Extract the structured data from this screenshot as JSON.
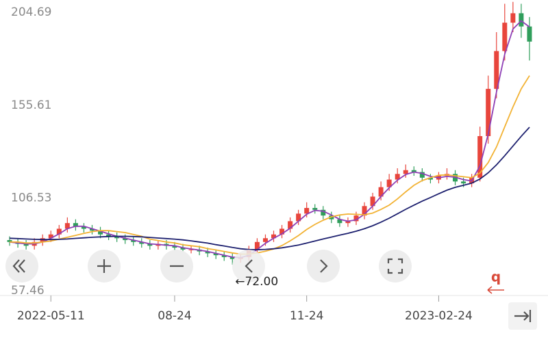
{
  "chart_data": {
    "type": "candlestick",
    "up_color": "#e8453c",
    "down_color": "#2f9e5b",
    "xlim": [
      -0.5,
      64
    ],
    "xticks": [
      {
        "value": 5,
        "label": "2022-05-11"
      },
      {
        "value": 20,
        "label": "08-24"
      },
      {
        "value": 36,
        "label": "11-24"
      },
      {
        "value": 52,
        "label": "2023-02-24"
      }
    ],
    "ylim": [
      55.7,
      212
    ],
    "yticks": [
      204.69,
      155.61,
      106.53,
      57.46
    ],
    "annotation": "←72.00",
    "annotation_at": 27,
    "signal_label": "q",
    "open": [
      85,
      84,
      83,
      82,
      84,
      86,
      88,
      91,
      94,
      92,
      91,
      90,
      88,
      87,
      86,
      85,
      84,
      83,
      82,
      83,
      82,
      81,
      80,
      80,
      79,
      78,
      77,
      76,
      75,
      76,
      80,
      84,
      86,
      88,
      91,
      95,
      99,
      102,
      101,
      98,
      96,
      94,
      95,
      98,
      103,
      108,
      113,
      117,
      120,
      122,
      121,
      118,
      117,
      119,
      120,
      116,
      115,
      118,
      140,
      165,
      185,
      200,
      205,
      198
    ],
    "high": [
      87,
      86,
      85,
      86,
      88,
      90,
      93,
      97,
      96,
      94,
      93,
      92,
      90,
      89,
      88,
      87,
      86,
      85,
      85,
      85,
      84,
      83,
      82,
      82,
      81,
      80,
      79,
      78,
      78,
      82,
      86,
      88,
      90,
      93,
      97,
      101,
      105,
      104,
      103,
      100,
      98,
      97,
      100,
      105,
      110,
      116,
      120,
      123,
      125,
      124,
      123,
      120,
      121,
      123,
      122,
      118,
      120,
      145,
      172,
      195,
      210,
      211,
      210,
      203
    ],
    "low": [
      82,
      81,
      80,
      80,
      82,
      84,
      86,
      89,
      90,
      89,
      88,
      86,
      85,
      84,
      83,
      82,
      81,
      80,
      80,
      80,
      79,
      78,
      78,
      77,
      76,
      75,
      74,
      72,
      73,
      74,
      78,
      82,
      84,
      86,
      89,
      93,
      97,
      99,
      96,
      94,
      92,
      92,
      93,
      96,
      101,
      106,
      111,
      115,
      118,
      119,
      116,
      115,
      115,
      117,
      114,
      113,
      113,
      116,
      136,
      160,
      180,
      195,
      192,
      180
    ],
    "close": [
      84,
      83,
      82,
      84,
      86,
      88,
      91,
      94,
      92,
      91,
      90,
      88,
      87,
      86,
      85,
      84,
      83,
      82,
      83,
      82,
      81,
      80,
      80,
      79,
      78,
      77,
      76,
      75,
      76,
      80,
      84,
      86,
      88,
      91,
      95,
      99,
      102,
      101,
      98,
      96,
      94,
      95,
      98,
      103,
      108,
      113,
      117,
      120,
      122,
      121,
      118,
      117,
      119,
      120,
      116,
      115,
      118,
      140,
      165,
      185,
      200,
      205,
      198,
      190
    ],
    "series": [
      {
        "color": "#8e3fb5",
        "values": [
          84,
          83.5,
          83,
          83,
          84,
          86,
          88.3,
          91,
          92.3,
          92.3,
          91,
          89.7,
          88.3,
          87,
          86,
          85,
          84,
          83,
          82.7,
          82.3,
          82,
          81,
          80.3,
          79.7,
          79,
          78,
          77,
          76,
          75.7,
          77,
          80,
          83.3,
          86,
          88.3,
          91.3,
          95,
          98.7,
          100.7,
          100.3,
          98.3,
          96,
          95,
          95.7,
          98.7,
          103,
          108,
          112.7,
          116.7,
          119.7,
          121,
          120.3,
          118.7,
          118,
          118.7,
          118.3,
          117,
          116.3,
          124.3,
          141,
          163.3,
          183.3,
          196.7,
          201,
          197.7
        ]
      },
      {
        "color": "#f2b233",
        "values": [
          84,
          84,
          83.5,
          83.5,
          84,
          84.5,
          85.5,
          86.5,
          87.5,
          88.5,
          89.5,
          90,
          90,
          89.5,
          89,
          88,
          87,
          85.5,
          84.8,
          84,
          83.5,
          82.5,
          82,
          81.5,
          80.5,
          79.8,
          79,
          78.2,
          77.6,
          77.6,
          78.2,
          79.1,
          80.3,
          82.1,
          84.6,
          87.4,
          90.6,
          93.3,
          95.5,
          97.3,
          98.3,
          98.8,
          98.6,
          98.4,
          99.3,
          101.2,
          103.5,
          106.8,
          110.5,
          114,
          116.5,
          118,
          119.3,
          119.5,
          119,
          118.5,
          118,
          120.5,
          126,
          134.3,
          144.9,
          155.5,
          165,
          172
        ]
      },
      {
        "color": "#1c1f6e",
        "values": [
          86,
          85.8,
          85.6,
          85.4,
          85.3,
          85.3,
          85.4,
          85.6,
          85.9,
          86.2,
          86.5,
          86.7,
          86.9,
          87,
          87,
          86.9,
          86.7,
          86.4,
          86.1,
          85.8,
          85.5,
          85.1,
          84.6,
          84,
          83.4,
          82.6,
          81.9,
          81.1,
          80.4,
          80,
          79.9,
          80.1,
          80.4,
          80.9,
          81.6,
          82.4,
          83.4,
          84.5,
          85.6,
          86.6,
          87.6,
          88.6,
          89.7,
          91,
          92.6,
          94.5,
          96.6,
          98.9,
          101.3,
          103.5,
          105.6,
          107.5,
          109.5,
          111.4,
          112.9,
          114,
          115.1,
          117.3,
          120.6,
          124.8,
          129.6,
          134.8,
          139.9,
          144.7
        ]
      }
    ]
  }
}
